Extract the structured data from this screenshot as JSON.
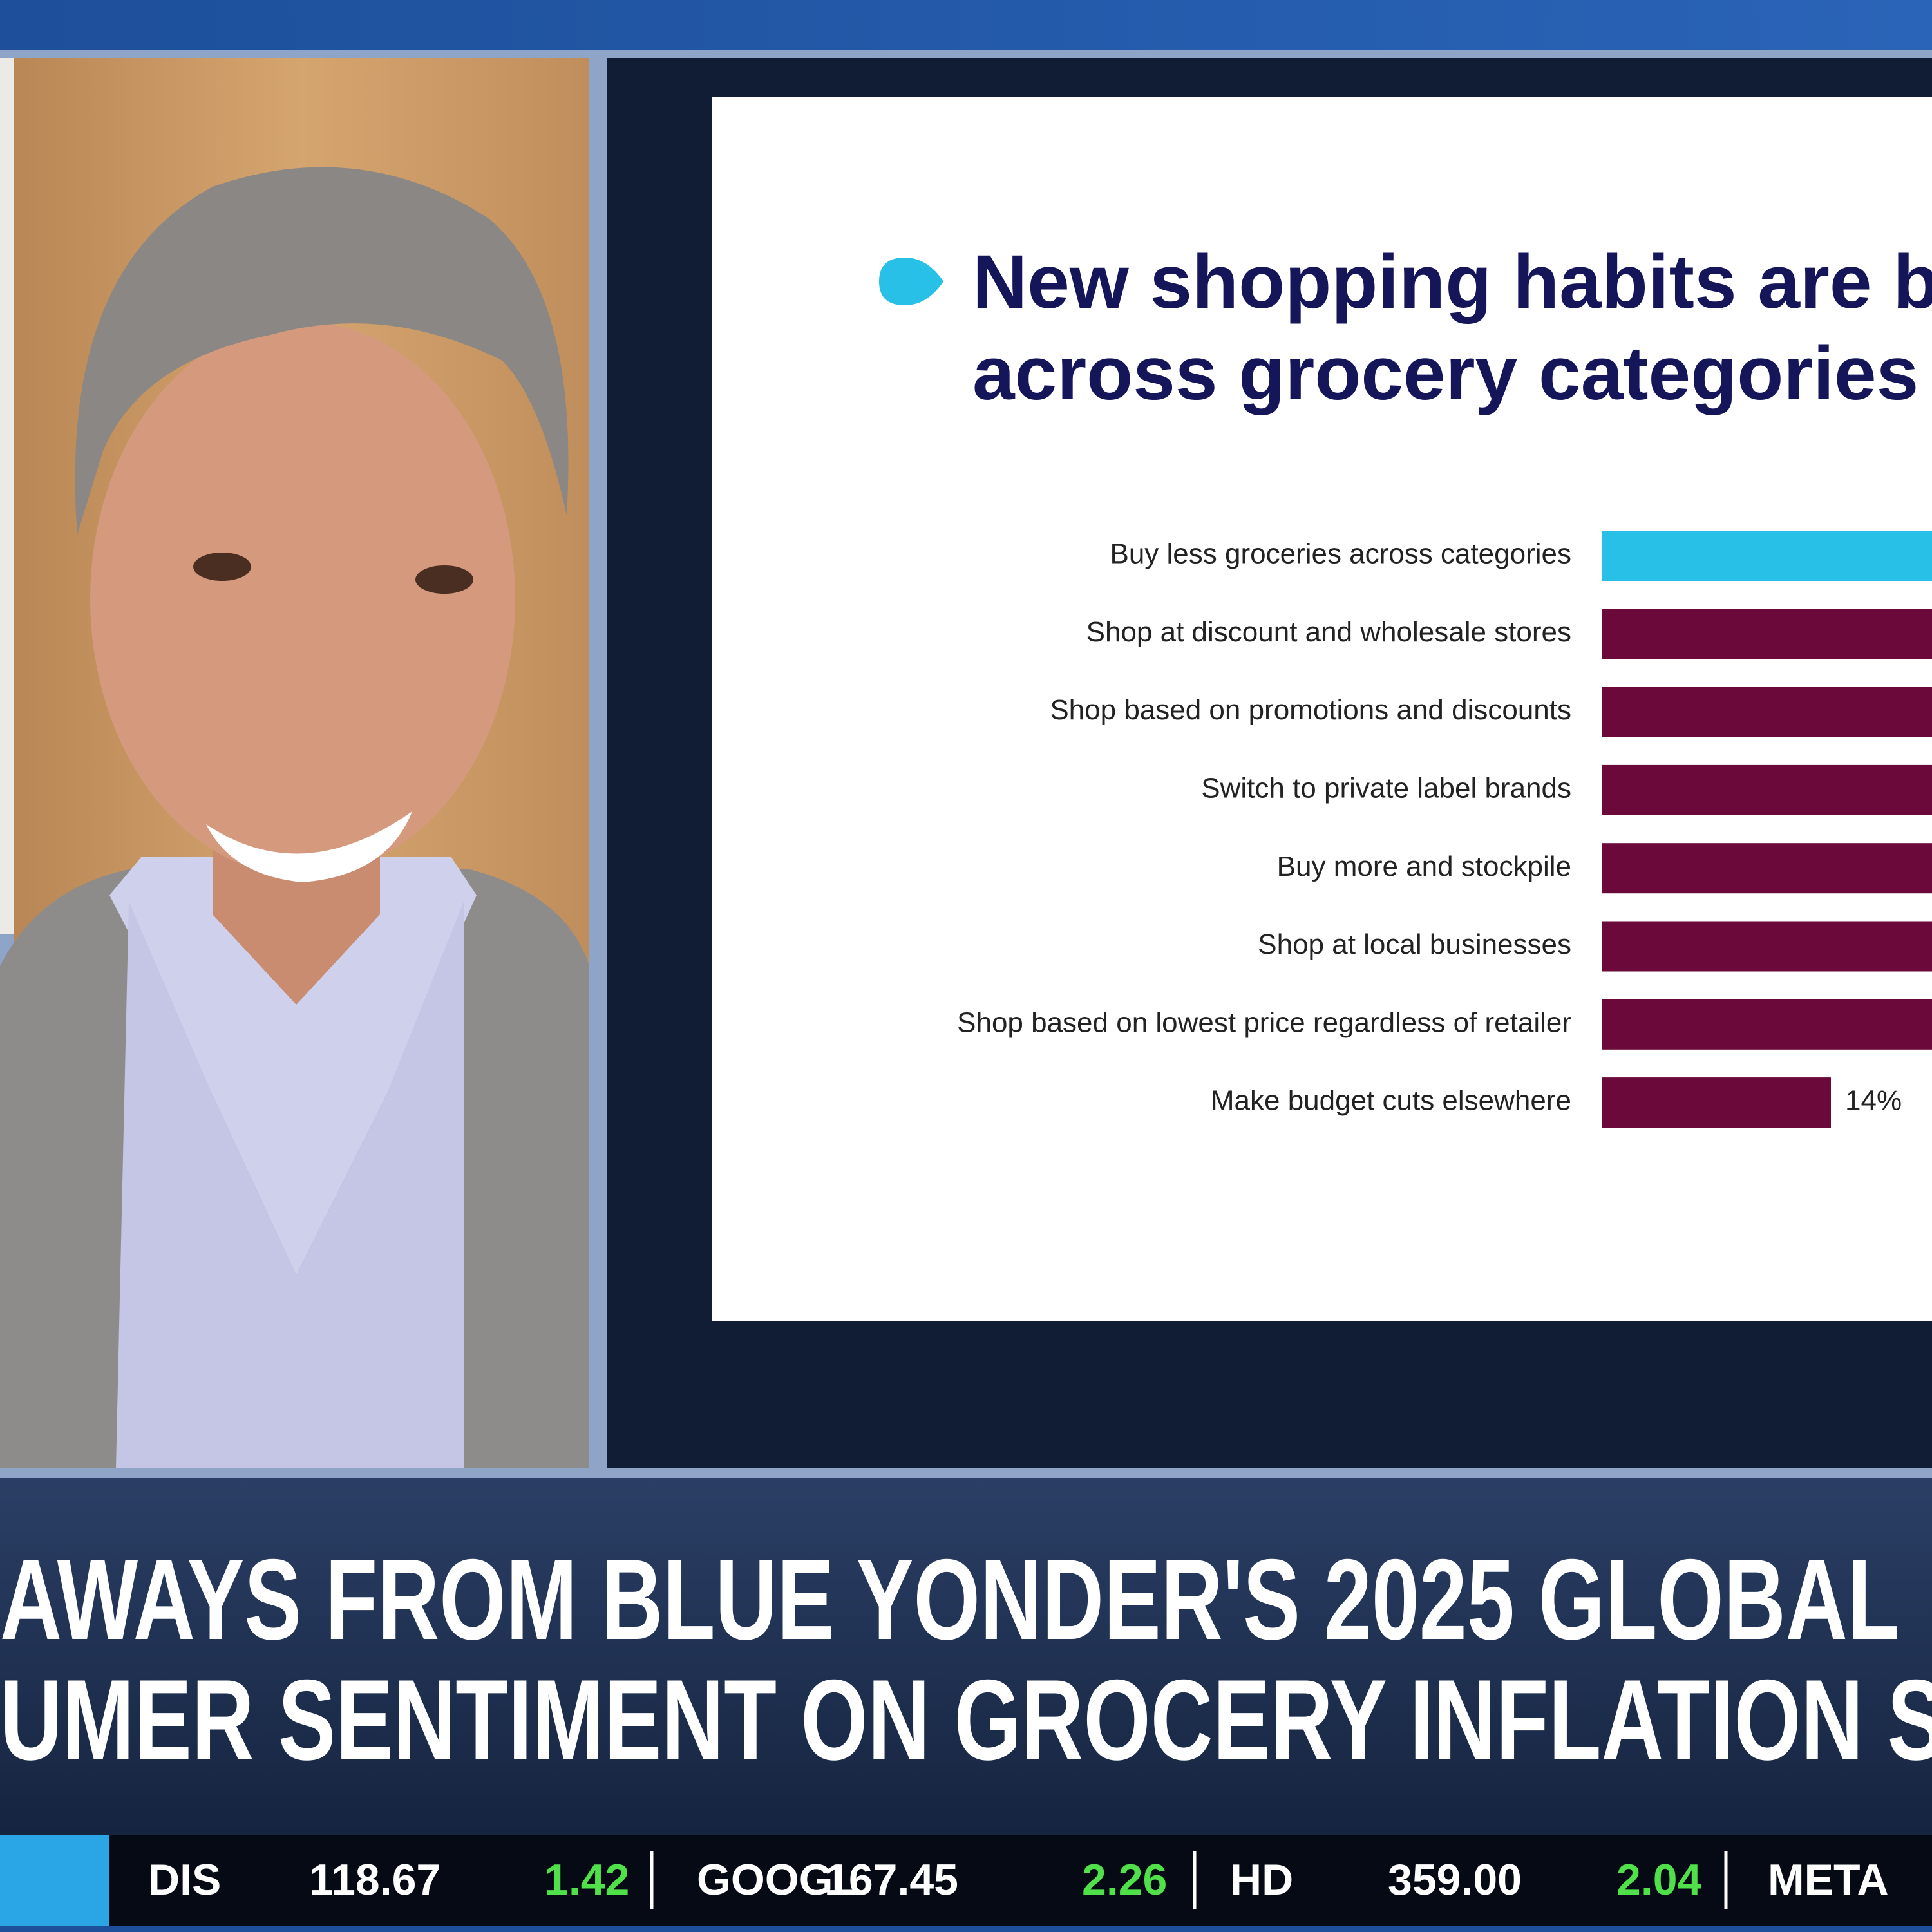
{
  "slide": {
    "title_lines": [
      "New shopping habits are be",
      "across grocery categories"
    ],
    "bars": [
      {
        "label": "Buy less groceries across categories"
      },
      {
        "label": "Shop at discount and wholesale stores"
      },
      {
        "label": "Shop based on promotions and discounts"
      },
      {
        "label": "Switch to private label brands"
      },
      {
        "label": "Buy more and stockpile"
      },
      {
        "label": "Shop at local businesses"
      },
      {
        "label": "Shop based on lowest price regardless of retailer"
      },
      {
        "label": "Make budget cuts elsewhere",
        "value_label": "14%"
      }
    ]
  },
  "chyron": {
    "lines": [
      "AWAYS FROM BLUE YONDER'S 2025 GLOBAL",
      "UMER SENTIMENT ON GROCERY INFLATION S"
    ]
  },
  "ticker": [
    {
      "symbol": "DIS",
      "price": "118.67",
      "change": "1.42"
    },
    {
      "symbol": "GOOGL",
      "price": "167.45",
      "change": "2.26"
    },
    {
      "symbol": "HD",
      "price": "359.00",
      "change": "2.04"
    },
    {
      "symbol": "META"
    }
  ]
}
